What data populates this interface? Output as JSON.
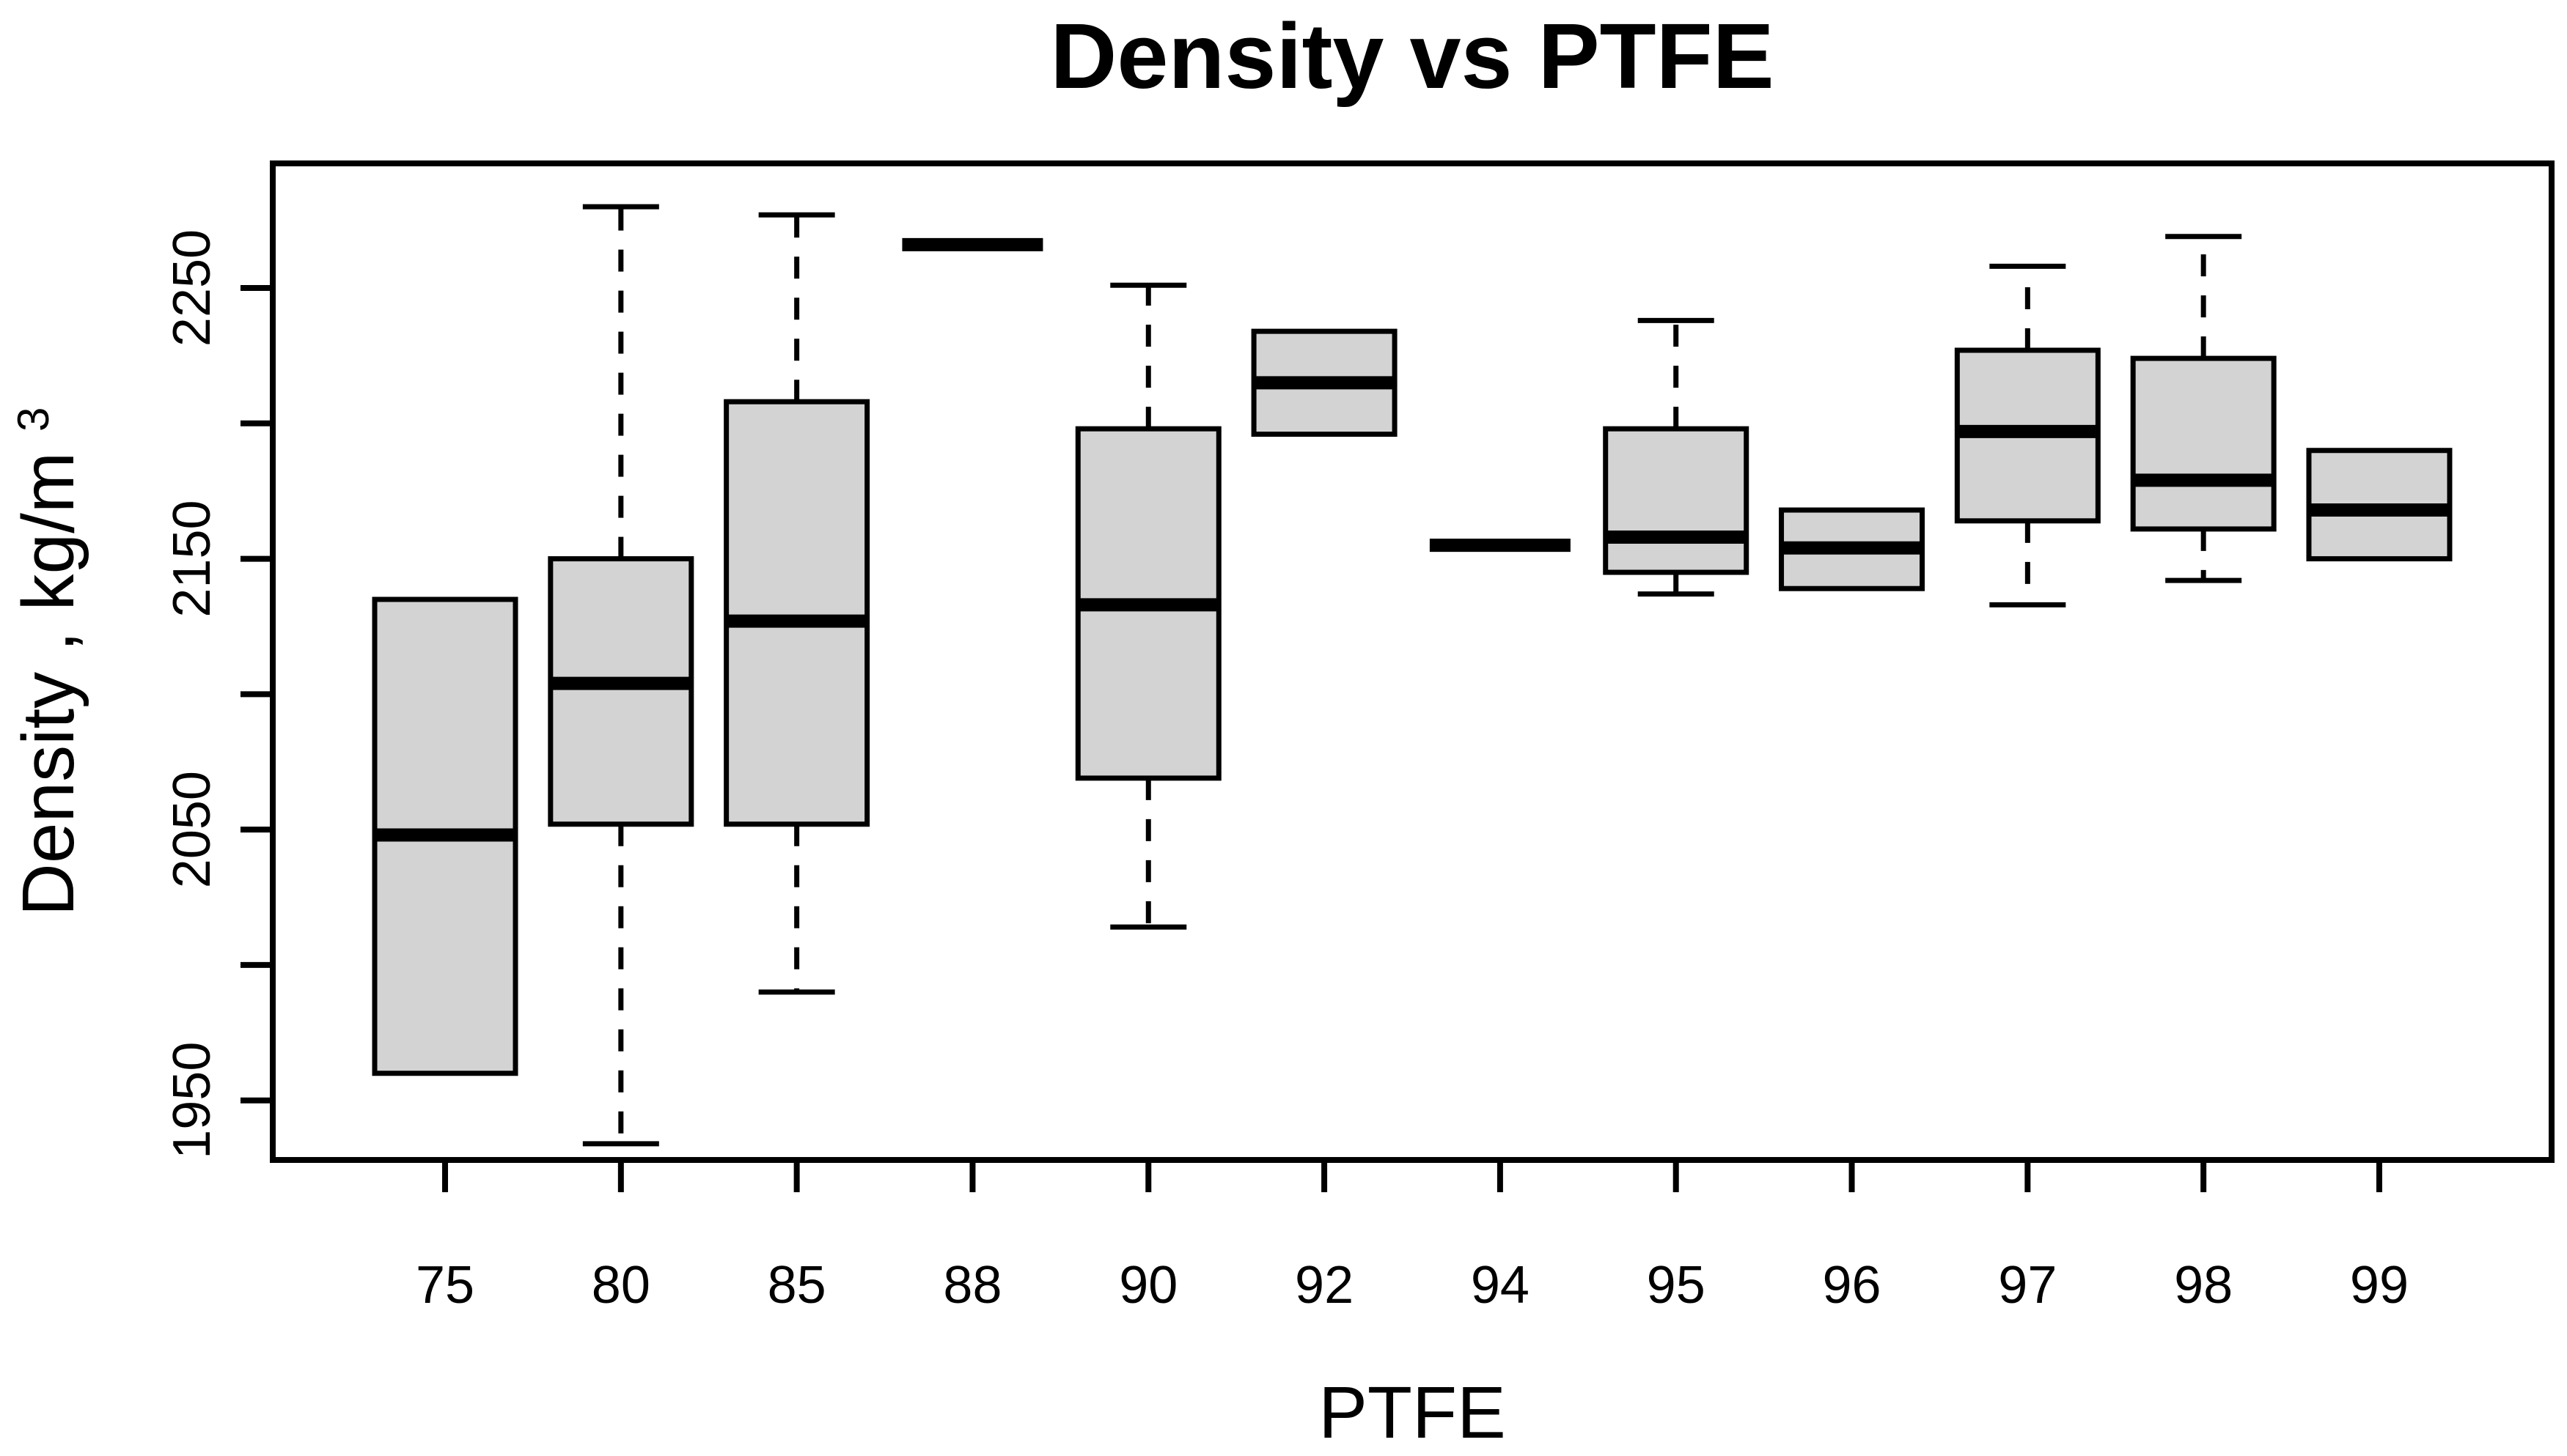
{
  "title": "Density vs PTFE",
  "x_axis": {
    "label": "PTFE",
    "tick_labels": [
      "75",
      "80",
      "85",
      "88",
      "90",
      "92",
      "94",
      "95",
      "96",
      "97",
      "98",
      "99"
    ]
  },
  "y_axis": {
    "label": "Density , kg/m",
    "label_superscript": "3",
    "tick_values": [
      1950,
      2000,
      2050,
      2100,
      2150,
      2200,
      2250
    ],
    "labeled_tick_values": [
      1950,
      2050,
      2150,
      2250
    ],
    "range": [
      1928,
      2296
    ]
  },
  "colors": {
    "box_fill": "#d3d3d3",
    "stroke": "#000000",
    "background": "#ffffff"
  },
  "chart_data": {
    "type": "boxplot",
    "title": "Density vs PTFE",
    "xlabel": "PTFE",
    "ylabel": "Density , kg/m³",
    "ylim": [
      1928,
      2296
    ],
    "grid": false,
    "categories": [
      "75",
      "80",
      "85",
      "88",
      "90",
      "92",
      "94",
      "95",
      "96",
      "97",
      "98",
      "99"
    ],
    "boxes": [
      {
        "category": "75",
        "whisker_low": 1960,
        "q1": 1960,
        "median": 2048,
        "q3": 2135,
        "whisker_high": 2135
      },
      {
        "category": "80",
        "whisker_low": 1934,
        "q1": 2052,
        "median": 2104,
        "q3": 2150,
        "whisker_high": 2280
      },
      {
        "category": "85",
        "whisker_low": 1990,
        "q1": 2052,
        "median": 2127,
        "q3": 2208,
        "whisker_high": 2277
      },
      {
        "category": "88",
        "whisker_low": 2266,
        "q1": 2266,
        "median": 2266,
        "q3": 2266,
        "whisker_high": 2266
      },
      {
        "category": "90",
        "whisker_low": 2014,
        "q1": 2069,
        "median": 2133,
        "q3": 2198,
        "whisker_high": 2251
      },
      {
        "category": "92",
        "whisker_low": 2196,
        "q1": 2196,
        "median": 2215,
        "q3": 2234,
        "whisker_high": 2234
      },
      {
        "category": "94",
        "whisker_low": 2155,
        "q1": 2155,
        "median": 2155,
        "q3": 2155,
        "whisker_high": 2155
      },
      {
        "category": "95",
        "whisker_low": 2137,
        "q1": 2145,
        "median": 2158,
        "q3": 2198,
        "whisker_high": 2238
      },
      {
        "category": "96",
        "whisker_low": 2139,
        "q1": 2139,
        "median": 2154,
        "q3": 2168,
        "whisker_high": 2168
      },
      {
        "category": "97",
        "whisker_low": 2133,
        "q1": 2164,
        "median": 2197,
        "q3": 2227,
        "whisker_high": 2258
      },
      {
        "category": "98",
        "whisker_low": 2142,
        "q1": 2161,
        "median": 2179,
        "q3": 2224,
        "whisker_high": 2269
      },
      {
        "category": "99",
        "whisker_low": 2150,
        "q1": 2150,
        "median": 2168,
        "q3": 2190,
        "whisker_high": 2190
      }
    ]
  }
}
